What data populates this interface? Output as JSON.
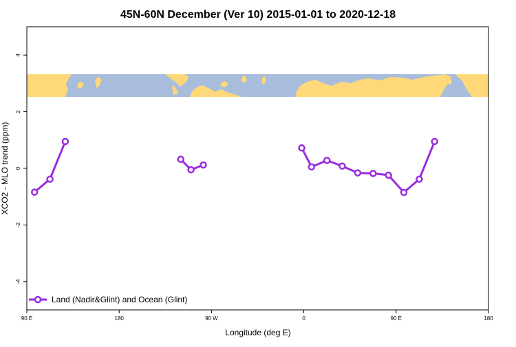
{
  "chart_data": {
    "type": "line",
    "title": "45N-60N December (Ver 10)   2015-01-01 to 2020-12-18",
    "xlabel": "Longitude (deg E)",
    "ylabel": "XCO2 - MLO trend (ppm)",
    "xlim": [
      90,
      540
    ],
    "ylim": [
      -5,
      5
    ],
    "x_ticks": [
      {
        "value": 90,
        "label": "90 E"
      },
      {
        "value": 180,
        "label": "180"
      },
      {
        "value": 270,
        "label": "90 W"
      },
      {
        "value": 360,
        "label": "0"
      },
      {
        "value": 450,
        "label": "90 E"
      },
      {
        "value": 540,
        "label": "180"
      }
    ],
    "y_ticks": [
      {
        "value": -4,
        "label": "-4"
      },
      {
        "value": -2,
        "label": "-2"
      },
      {
        "value": 0,
        "label": "0"
      },
      {
        "value": 2,
        "label": "2"
      },
      {
        "value": 4,
        "label": "4"
      }
    ],
    "map_band": {
      "lat_range": [
        45,
        60
      ],
      "y_range": [
        2.5,
        3.3
      ],
      "land_color": "#FFD87A",
      "ocean_color": "#A8BCDC"
    },
    "series": [
      {
        "name": "Land (Nadir&Glint) and Ocean (Glint)",
        "color": "#9A2BE2",
        "segments": [
          [
            [
              97.5,
              -0.84
            ],
            [
              112.5,
              -0.38
            ],
            [
              127.5,
              0.95
            ]
          ],
          [
            [
              240,
              0.32
            ],
            [
              250,
              -0.05
            ],
            [
              262,
              0.12
            ]
          ],
          [
            [
              358,
              0.72
            ],
            [
              367.5,
              0.05
            ],
            [
              382.5,
              0.28
            ],
            [
              397.5,
              0.08
            ],
            [
              412.5,
              -0.16
            ],
            [
              427.5,
              -0.18
            ],
            [
              442.5,
              -0.24
            ],
            [
              457.5,
              -0.85
            ],
            [
              472.5,
              -0.38
            ],
            [
              487.5,
              0.95
            ]
          ]
        ]
      }
    ],
    "legend_position": "bottom-left",
    "grid": false
  }
}
